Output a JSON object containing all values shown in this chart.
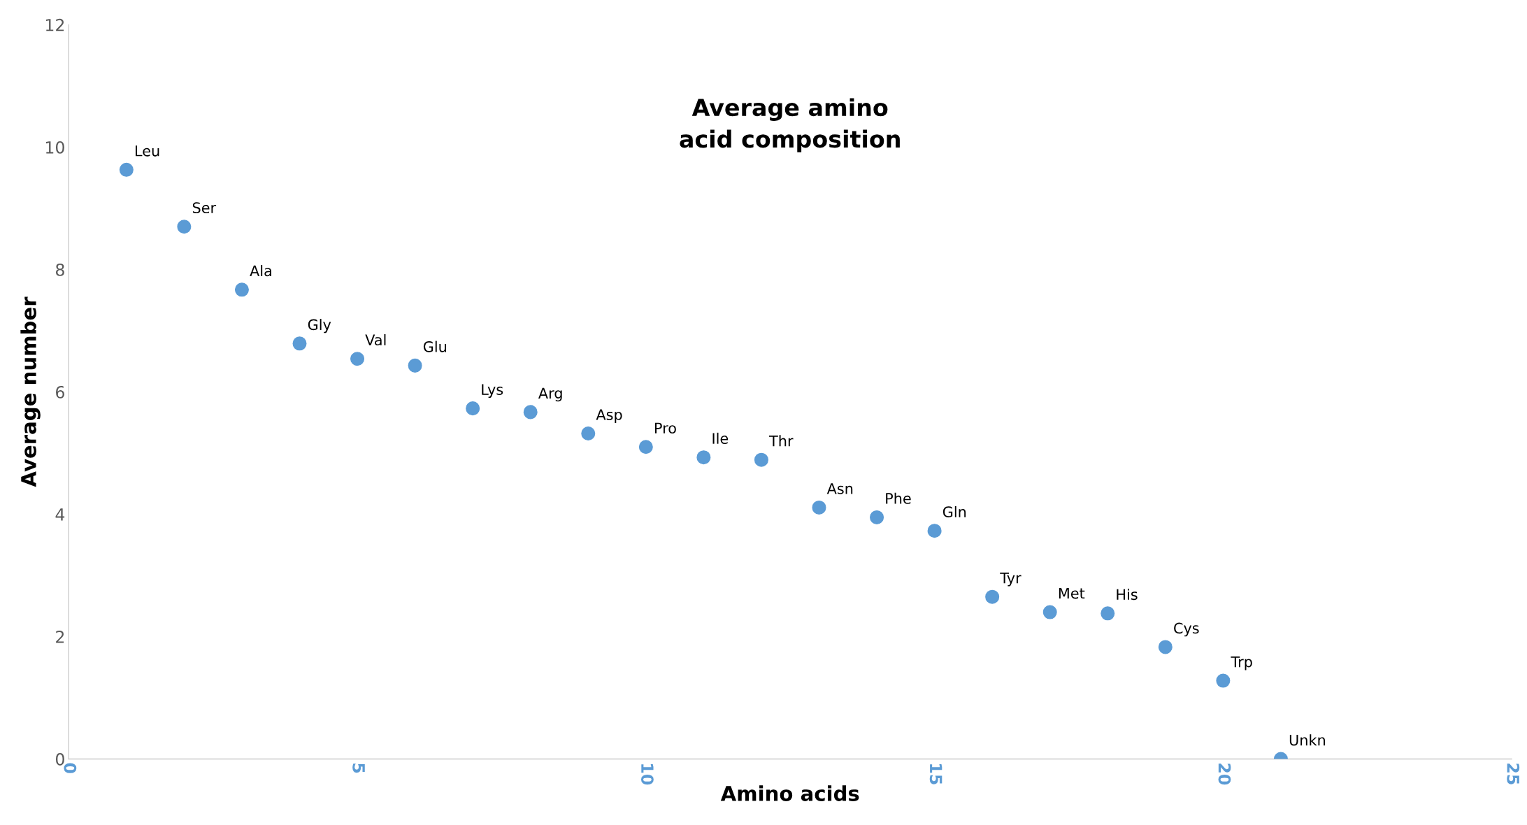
{
  "chart_data": {
    "type": "scatter",
    "title": "Average amino\nacid composition",
    "xlabel": "Amino acids",
    "ylabel": "Average number",
    "x": [
      1,
      2,
      3,
      4,
      5,
      6,
      7,
      8,
      9,
      10,
      11,
      12,
      13,
      14,
      15,
      16,
      17,
      18,
      19,
      20,
      21
    ],
    "series": [
      {
        "color": "#5b9bd5",
        "values": [
          9.63,
          8.7,
          7.67,
          6.79,
          6.54,
          6.43,
          5.73,
          5.67,
          5.32,
          5.1,
          4.93,
          4.89,
          4.11,
          3.95,
          3.73,
          2.65,
          2.4,
          2.38,
          1.83,
          1.28,
          0
        ]
      }
    ],
    "annotations": [
      {
        "text": "Leu",
        "x": 1,
        "y": 9.63
      },
      {
        "text": "Ser",
        "x": 2,
        "y": 8.7
      },
      {
        "text": "Ala",
        "x": 3,
        "y": 7.67
      },
      {
        "text": "Gly",
        "x": 4,
        "y": 6.79
      },
      {
        "text": "Val",
        "x": 5,
        "y": 6.54
      },
      {
        "text": "Glu",
        "x": 6,
        "y": 6.43
      },
      {
        "text": "Lys",
        "x": 7,
        "y": 5.73
      },
      {
        "text": "Arg",
        "x": 8,
        "y": 5.67
      },
      {
        "text": "Asp",
        "x": 9,
        "y": 5.32
      },
      {
        "text": "Pro",
        "x": 10,
        "y": 5.1
      },
      {
        "text": "Ile",
        "x": 11,
        "y": 4.93
      },
      {
        "text": "Thr",
        "x": 12,
        "y": 4.89
      },
      {
        "text": "Asn",
        "x": 13,
        "y": 4.11
      },
      {
        "text": "Phe",
        "x": 14,
        "y": 3.95
      },
      {
        "text": "Gln",
        "x": 15,
        "y": 3.73
      },
      {
        "text": "Tyr",
        "x": 16,
        "y": 2.65
      },
      {
        "text": "Met",
        "x": 17,
        "y": 2.4
      },
      {
        "text": "His",
        "x": 18,
        "y": 2.38
      },
      {
        "text": "Cys",
        "x": 19,
        "y": 1.83
      },
      {
        "text": "Trp",
        "x": 20,
        "y": 1.28
      },
      {
        "text": "Unkn",
        "x": 21,
        "y": 0
      }
    ],
    "xlim": [
      0,
      25
    ],
    "xticks": [
      0,
      5,
      10,
      15,
      20,
      25
    ],
    "ylim": [
      0,
      12
    ],
    "yticks": [
      0,
      2,
      4,
      6,
      8,
      10,
      12
    ],
    "grid": false,
    "marker": "circle",
    "legend": false
  }
}
